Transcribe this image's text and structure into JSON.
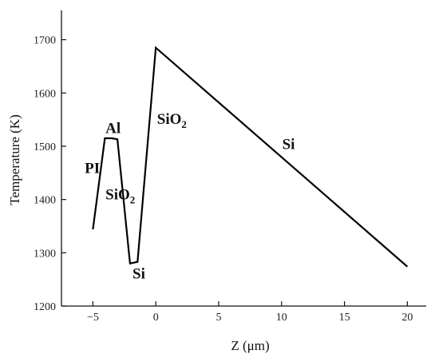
{
  "chart_data": {
    "type": "line",
    "xlabel": "Z (μm)",
    "ylabel": "Temperature (K)",
    "xlim": [
      -7.5,
      21.5
    ],
    "ylim": [
      1200,
      1755
    ],
    "xticks": [
      -5,
      0,
      5,
      10,
      15,
      20
    ],
    "yticks": [
      1200,
      1300,
      1400,
      1500,
      1600,
      1700
    ],
    "grid": false,
    "series": [
      {
        "x": [
          -5.0,
          -4.05,
          -3.5,
          -3.05,
          -2.05,
          -1.45,
          0.0,
          20.0
        ],
        "y": [
          1344,
          1515,
          1515,
          1513,
          1280,
          1283,
          1685,
          1274
        ]
      }
    ],
    "annotations": [
      {
        "name": "PI",
        "text": "PI",
        "sub": "",
        "x": -5.65,
        "y": 1450
      },
      {
        "name": "Al",
        "text": "Al",
        "sub": "",
        "x": -4.0,
        "y": 1525
      },
      {
        "name": "SiO2-left",
        "text": "SiO",
        "sub": "2",
        "x": -4.0,
        "y": 1400
      },
      {
        "name": "Si-left",
        "text": "Si",
        "sub": "",
        "x": -1.85,
        "y": 1252
      },
      {
        "name": "SiO2-right",
        "text": "SiO",
        "sub": "2",
        "x": 0.1,
        "y": 1542
      },
      {
        "name": "Si-right",
        "text": "Si",
        "sub": "",
        "x": 10.05,
        "y": 1495
      }
    ]
  }
}
